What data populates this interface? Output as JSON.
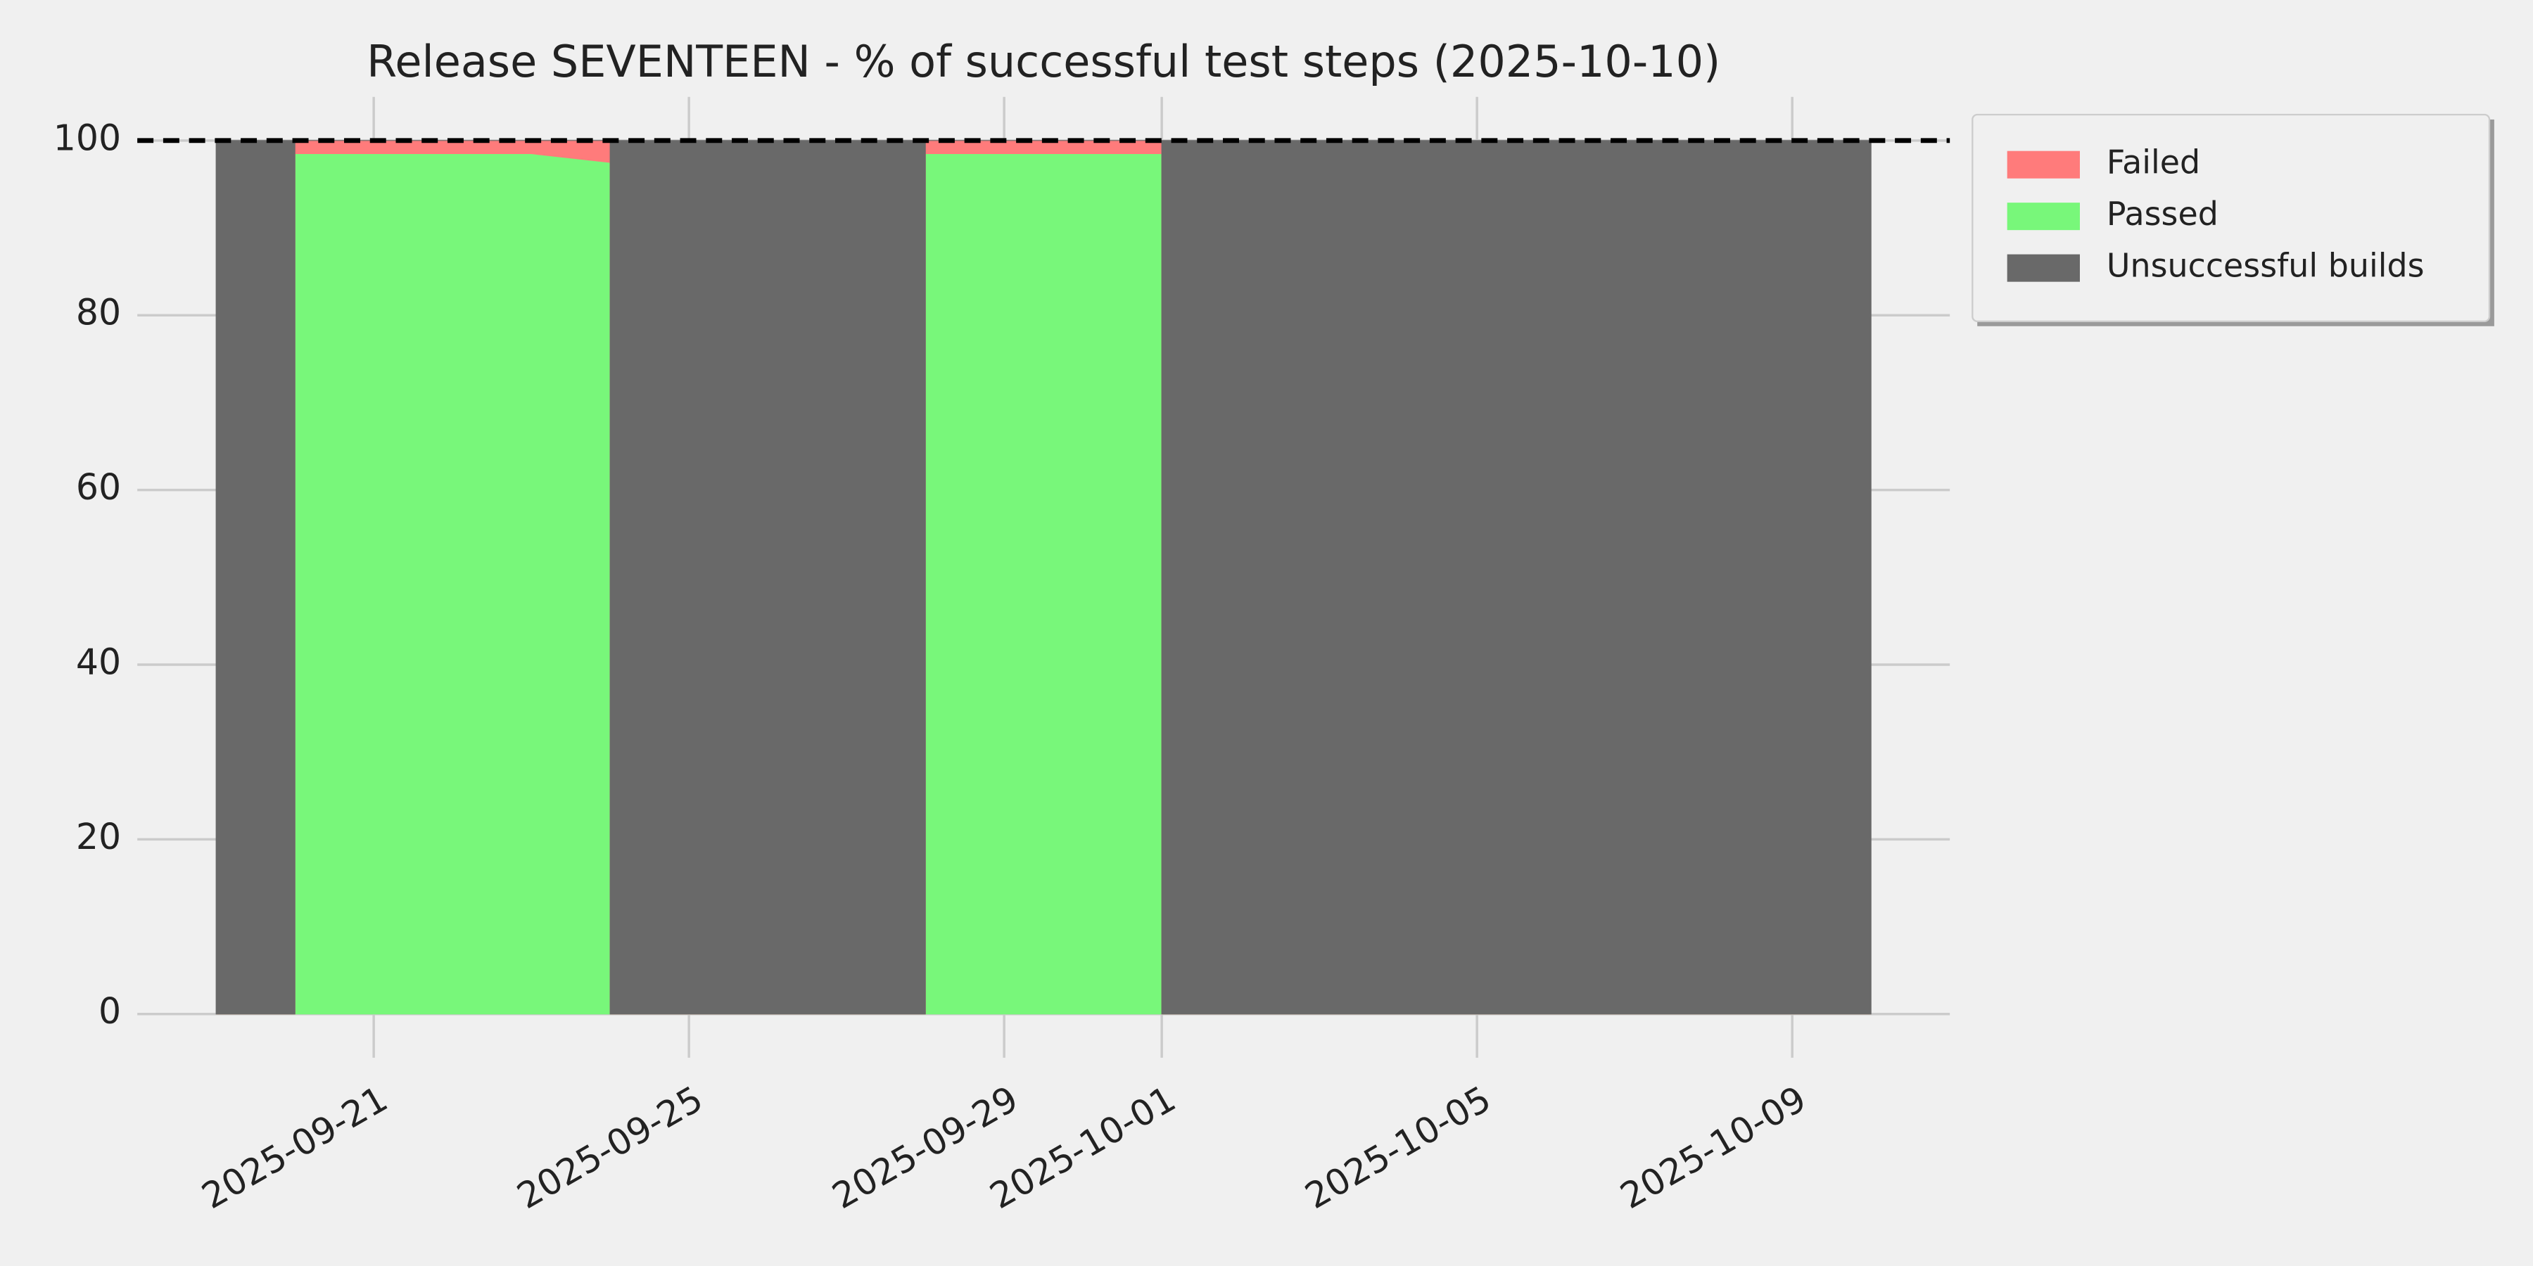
{
  "chart_data": {
    "type": "stacked_area",
    "title": "Release SEVENTEEN - % of successful test steps (2025-10-10)",
    "x": [
      "2025-09-19",
      "2025-09-20",
      "2025-09-20",
      "2025-09-21",
      "2025-09-22",
      "2025-09-23",
      "2025-09-24",
      "2025-09-24",
      "2025-09-28",
      "2025-09-28",
      "2025-10-01",
      "2025-10-01",
      "2025-10-10"
    ],
    "series": [
      {
        "name": "Failed",
        "color": "#ff7b7b",
        "values": [
          0,
          0,
          1.5,
          1.5,
          1.5,
          1.5,
          2.5,
          0,
          0,
          1.5,
          1.5,
          0,
          0
        ]
      },
      {
        "name": "Passed",
        "color": "#78f77a",
        "values": [
          0,
          0,
          98.5,
          98.5,
          98.5,
          98.5,
          97.5,
          0,
          0,
          98.5,
          98.5,
          0,
          0
        ]
      },
      {
        "name": "Unsuccessful builds",
        "color": "#696969",
        "values": [
          100,
          100,
          0,
          0,
          0,
          0,
          0,
          100,
          100,
          0,
          0,
          100,
          100
        ]
      }
    ],
    "stack_order": [
      "Passed",
      "Failed",
      "Unsuccessful builds"
    ],
    "xlim": [
      "2025-09-18",
      "2025-10-11"
    ],
    "xticks": [
      "2025-09-21",
      "2025-09-25",
      "2025-09-29",
      "2025-10-01",
      "2025-10-05",
      "2025-10-09"
    ],
    "ylim": [
      -5,
      105
    ],
    "yticks": [
      0,
      20,
      40,
      60,
      80,
      100
    ],
    "reference_line": 100,
    "grid": true,
    "legend": "outside upper right"
  }
}
